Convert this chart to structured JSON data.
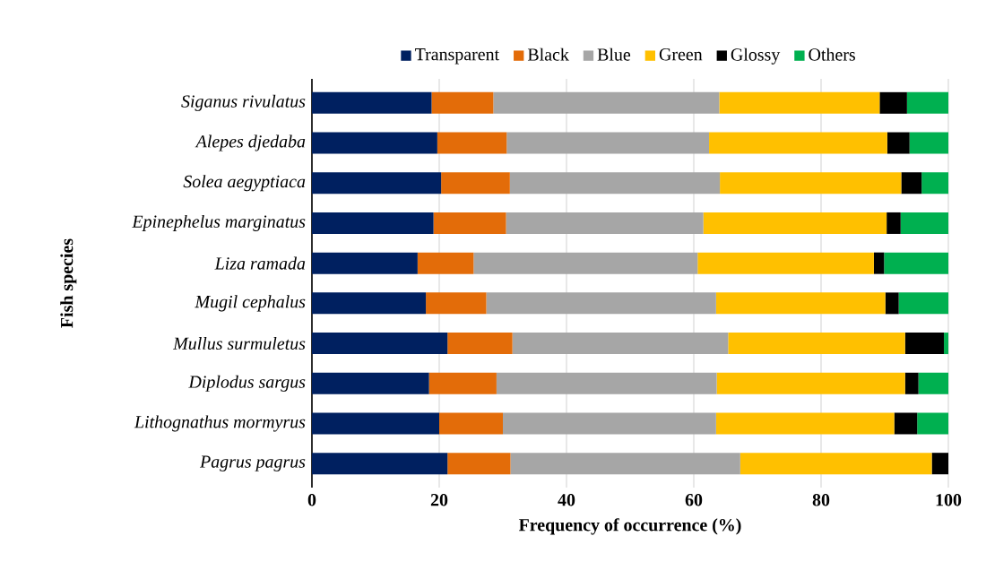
{
  "chart_data": {
    "type": "bar",
    "orientation": "horizontal",
    "stacked": true,
    "xlabel": "Frequency of occurrence (%)",
    "ylabel": "Fish species",
    "categories": [
      "Siganus rivulatus",
      "Alepes djedaba",
      "Solea aegyptiaca",
      "Epinephelus marginatus",
      "Liza ramada",
      "Mugil cephalus",
      "Mullus surmuletus",
      "Diplodus sargus",
      "Lithognathus mormyrus",
      "Pagrus pagrus"
    ],
    "series": [
      {
        "name": "Transparent",
        "color": "#002060",
        "values": [
          18.8,
          19.7,
          20.3,
          19.1,
          16.6,
          17.9,
          21.3,
          18.4,
          20.0,
          21.3
        ]
      },
      {
        "name": "Black",
        "color": "#e36c09",
        "values": [
          9.7,
          10.9,
          10.8,
          11.4,
          8.8,
          9.5,
          10.2,
          10.6,
          10.0,
          9.9
        ]
      },
      {
        "name": "Blue",
        "color": "#a6a6a6",
        "values": [
          35.5,
          31.8,
          33.0,
          31.0,
          35.2,
          36.1,
          33.9,
          34.6,
          33.5,
          36.1
        ]
      },
      {
        "name": "Green",
        "color": "#ffc000",
        "values": [
          25.2,
          28.0,
          28.5,
          28.8,
          27.7,
          26.6,
          27.8,
          29.6,
          28.0,
          30.1
        ]
      },
      {
        "name": "Glossy",
        "color": "#000000",
        "values": [
          4.3,
          3.5,
          3.2,
          2.2,
          1.6,
          2.1,
          6.1,
          2.1,
          3.6,
          2.6
        ]
      },
      {
        "name": "Others",
        "color": "#00b050",
        "values": [
          6.5,
          6.1,
          4.2,
          7.5,
          10.1,
          7.8,
          0.7,
          4.7,
          4.9,
          0.0
        ]
      }
    ],
    "xlim": [
      0,
      100
    ],
    "xticks": [
      0,
      20,
      40,
      60,
      80,
      100
    ],
    "grid": "x",
    "legend": "top"
  }
}
